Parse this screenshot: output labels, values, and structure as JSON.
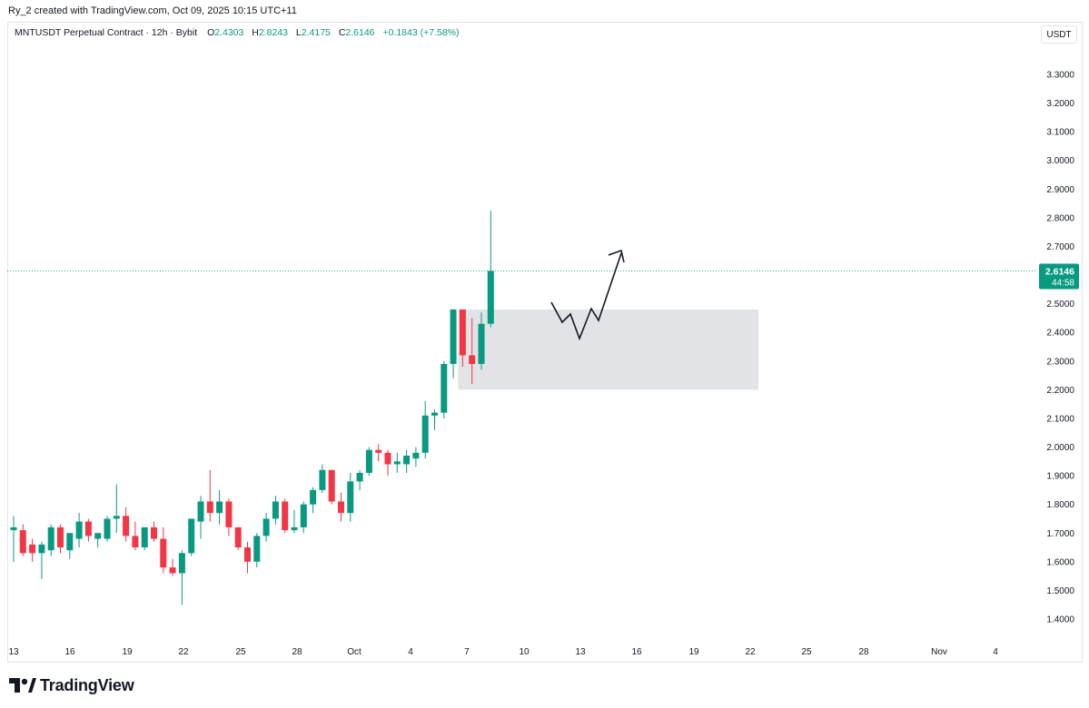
{
  "header": {
    "attribution": "Ry_2 created with TradingView.com, Oct 09, 2025 10:15 UTC+11"
  },
  "legend": {
    "symbol": "MNTUSDT Perpetual Contract · 12h · Bybit",
    "open_label": "O",
    "open": "2.4303",
    "high_label": "H",
    "high": "2.8243",
    "low_label": "L",
    "low": "2.4175",
    "close_label": "C",
    "close": "2.6146",
    "change": "+0.1843 (+7.58%)"
  },
  "price_axis": {
    "unit": "USDT",
    "current_price": "2.6146",
    "countdown": "44:58"
  },
  "footer": {
    "brand": "TradingView"
  },
  "colors": {
    "up": "#089981",
    "down": "#f23645",
    "zone": "#e1e3e6",
    "price_line": "#22ab94",
    "text": "#131722"
  },
  "chart_data": {
    "type": "candlestick",
    "interval": "12h",
    "ylim": [
      1.3,
      3.4
    ],
    "y_ticks": [
      "1.4000",
      "1.5000",
      "1.6000",
      "1.7000",
      "1.8000",
      "1.9000",
      "2.0000",
      "2.1000",
      "2.2000",
      "2.3000",
      "2.4000",
      "2.5000",
      "2.6000",
      "2.7000",
      "2.8000",
      "2.9000",
      "3.0000",
      "3.1000",
      "3.2000",
      "3.3000"
    ],
    "x_ticks": [
      "13",
      "16",
      "19",
      "22",
      "25",
      "28",
      "Oct",
      "4",
      "7",
      "10",
      "13",
      "16",
      "19",
      "22",
      "25",
      "28",
      "Nov",
      "4"
    ],
    "candles": [
      {
        "o": 1.71,
        "h": 1.76,
        "l": 1.6,
        "c": 1.72
      },
      {
        "o": 1.71,
        "h": 1.73,
        "l": 1.62,
        "c": 1.63
      },
      {
        "o": 1.66,
        "h": 1.68,
        "l": 1.6,
        "c": 1.63
      },
      {
        "o": 1.63,
        "h": 1.67,
        "l": 1.54,
        "c": 1.66
      },
      {
        "o": 1.64,
        "h": 1.73,
        "l": 1.62,
        "c": 1.72
      },
      {
        "o": 1.72,
        "h": 1.73,
        "l": 1.63,
        "c": 1.65
      },
      {
        "o": 1.64,
        "h": 1.7,
        "l": 1.61,
        "c": 1.7
      },
      {
        "o": 1.68,
        "h": 1.77,
        "l": 1.65,
        "c": 1.74
      },
      {
        "o": 1.74,
        "h": 1.75,
        "l": 1.67,
        "c": 1.69
      },
      {
        "o": 1.68,
        "h": 1.7,
        "l": 1.65,
        "c": 1.7
      },
      {
        "o": 1.68,
        "h": 1.76,
        "l": 1.67,
        "c": 1.75
      },
      {
        "o": 1.75,
        "h": 1.87,
        "l": 1.7,
        "c": 1.76
      },
      {
        "o": 1.76,
        "h": 1.79,
        "l": 1.67,
        "c": 1.69
      },
      {
        "o": 1.69,
        "h": 1.74,
        "l": 1.64,
        "c": 1.65
      },
      {
        "o": 1.65,
        "h": 1.72,
        "l": 1.64,
        "c": 1.72
      },
      {
        "o": 1.72,
        "h": 1.74,
        "l": 1.67,
        "c": 1.68
      },
      {
        "o": 1.68,
        "h": 1.72,
        "l": 1.56,
        "c": 1.58
      },
      {
        "o": 1.58,
        "h": 1.61,
        "l": 1.55,
        "c": 1.56
      },
      {
        "o": 1.56,
        "h": 1.64,
        "l": 1.45,
        "c": 1.63
      },
      {
        "o": 1.63,
        "h": 1.75,
        "l": 1.62,
        "c": 1.75
      },
      {
        "o": 1.74,
        "h": 1.83,
        "l": 1.68,
        "c": 1.81
      },
      {
        "o": 1.81,
        "h": 1.92,
        "l": 1.74,
        "c": 1.77
      },
      {
        "o": 1.77,
        "h": 1.85,
        "l": 1.73,
        "c": 1.81
      },
      {
        "o": 1.81,
        "h": 1.82,
        "l": 1.69,
        "c": 1.72
      },
      {
        "o": 1.72,
        "h": 1.72,
        "l": 1.64,
        "c": 1.65
      },
      {
        "o": 1.65,
        "h": 1.67,
        "l": 1.56,
        "c": 1.6
      },
      {
        "o": 1.6,
        "h": 1.7,
        "l": 1.58,
        "c": 1.69
      },
      {
        "o": 1.69,
        "h": 1.77,
        "l": 1.67,
        "c": 1.75
      },
      {
        "o": 1.75,
        "h": 1.83,
        "l": 1.73,
        "c": 1.81
      },
      {
        "o": 1.81,
        "h": 1.82,
        "l": 1.7,
        "c": 1.71
      },
      {
        "o": 1.71,
        "h": 1.78,
        "l": 1.7,
        "c": 1.72
      },
      {
        "o": 1.72,
        "h": 1.81,
        "l": 1.7,
        "c": 1.8
      },
      {
        "o": 1.8,
        "h": 1.86,
        "l": 1.77,
        "c": 1.85
      },
      {
        "o": 1.85,
        "h": 1.94,
        "l": 1.84,
        "c": 1.92
      },
      {
        "o": 1.92,
        "h": 1.92,
        "l": 1.8,
        "c": 1.81
      },
      {
        "o": 1.81,
        "h": 1.84,
        "l": 1.74,
        "c": 1.77
      },
      {
        "o": 1.77,
        "h": 1.91,
        "l": 1.74,
        "c": 1.88
      },
      {
        "o": 1.88,
        "h": 1.92,
        "l": 1.85,
        "c": 1.91
      },
      {
        "o": 1.91,
        "h": 2.0,
        "l": 1.9,
        "c": 1.99
      },
      {
        "o": 1.99,
        "h": 2.01,
        "l": 1.95,
        "c": 1.98
      },
      {
        "o": 1.98,
        "h": 1.99,
        "l": 1.9,
        "c": 1.94
      },
      {
        "o": 1.94,
        "h": 1.98,
        "l": 1.91,
        "c": 1.95
      },
      {
        "o": 1.94,
        "h": 1.99,
        "l": 1.91,
        "c": 1.97
      },
      {
        "o": 1.96,
        "h": 2.0,
        "l": 1.93,
        "c": 1.98
      },
      {
        "o": 1.98,
        "h": 2.16,
        "l": 1.96,
        "c": 2.11
      },
      {
        "o": 2.11,
        "h": 2.13,
        "l": 2.06,
        "c": 2.12
      },
      {
        "o": 2.12,
        "h": 2.3,
        "l": 2.1,
        "c": 2.29
      },
      {
        "o": 2.29,
        "h": 2.48,
        "l": 2.24,
        "c": 2.48
      },
      {
        "o": 2.48,
        "h": 2.48,
        "l": 2.28,
        "c": 2.32
      },
      {
        "o": 2.32,
        "h": 2.45,
        "l": 2.22,
        "c": 2.29
      },
      {
        "o": 2.29,
        "h": 2.47,
        "l": 2.27,
        "c": 2.43
      },
      {
        "o": 2.4303,
        "h": 2.8243,
        "l": 2.4175,
        "c": 2.6146
      }
    ]
  }
}
